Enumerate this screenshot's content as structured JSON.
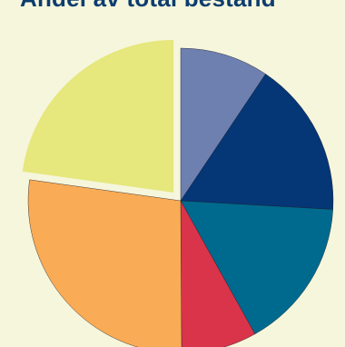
{
  "chart_data": {
    "type": "pie",
    "title": "Andel av total bestand",
    "start_angle_deg": 0,
    "direction": "clockwise",
    "slices": [
      {
        "value": 9.4,
        "color": "#6e80b0",
        "exploded": false
      },
      {
        "value": 16.5,
        "color": "#053676",
        "exploded": false
      },
      {
        "value": 16.0,
        "color": "#006a8e",
        "exploded": false
      },
      {
        "value": 8.0,
        "color": "#d9344a",
        "exploded": false
      },
      {
        "value": 27.3,
        "color": "#f9ab55",
        "exploded": false
      },
      {
        "value": 22.8,
        "color": "#e6e77c",
        "exploded": true
      }
    ]
  }
}
